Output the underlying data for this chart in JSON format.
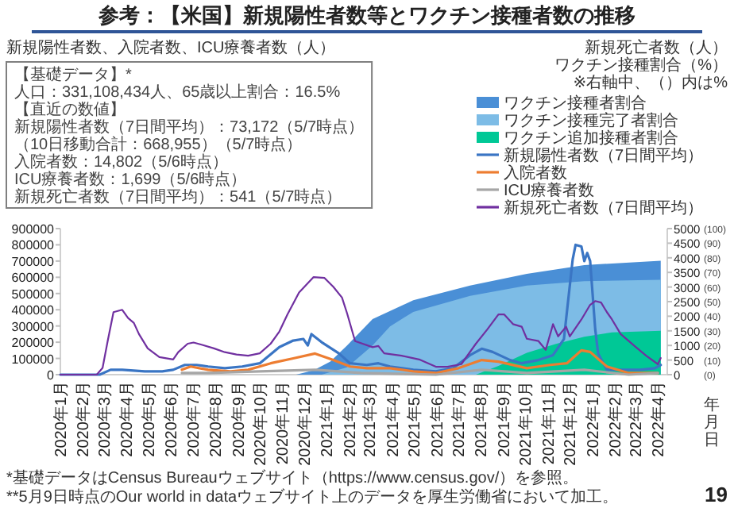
{
  "chart_data": {
    "type": "line",
    "title": "参考：【米国】新規陽性者数等とワクチン接種者数の推移",
    "xlabel": "年月日",
    "annotations": [
      "新規陽性者数、入院者数、ICU療養者数（人）",
      "新規死亡者数（人）",
      "ワクチン接種割合（%）",
      "※右軸中、（）内は%",
      "【基礎データ】*",
      "人口：331,108,434人、65歳以上割合：16.5%",
      "【直近の数値】",
      "新規陽性者数（7日間平均）：73,172（5/7時点）",
      "（10日移動合計：668,955）（5/7時点）",
      "入院者数：14,802（5/6時点）",
      "ICU療養者数：1,699（5/6時点）",
      "新規死亡者数（7日間平均）：541（5/7時点）",
      "*基礎データはCensus Bureauウェブサイト（https://www.census.gov/）を参照。",
      "**5月9日時点のOur world in dataウェブサイト上のデータを厚生労働省において加工。",
      "19"
    ],
    "xlim": [
      "2020-01-01",
      "2022-04-14"
    ],
    "xticks": [
      {
        "value": "2020-01",
        "label": "2020年1月"
      },
      {
        "value": "2020-02",
        "label": "2020年2月"
      },
      {
        "value": "2020-03",
        "label": "2020年3月"
      },
      {
        "value": "2020-04",
        "label": "2020年4月"
      },
      {
        "value": "2020-05",
        "label": "2020年5月"
      },
      {
        "value": "2020-06",
        "label": "2020年6月"
      },
      {
        "value": "2020-07",
        "label": "2020年7月"
      },
      {
        "value": "2020-08",
        "label": "2020年8月"
      },
      {
        "value": "2020-09",
        "label": "2020年9月"
      },
      {
        "value": "2020-10",
        "label": "2020年10月"
      },
      {
        "value": "2020-11",
        "label": "2020年11月"
      },
      {
        "value": "2020-12",
        "label": "2020年12月"
      },
      {
        "value": "2021-01",
        "label": "2021年1月"
      },
      {
        "value": "2021-02",
        "label": "2021年2月"
      },
      {
        "value": "2021-03",
        "label": "2021年3月"
      },
      {
        "value": "2021-04",
        "label": "2021年4月"
      },
      {
        "value": "2021-05",
        "label": "2021年5月"
      },
      {
        "value": "2021-06",
        "label": "2021年6月"
      },
      {
        "value": "2021-07",
        "label": "2021年7月"
      },
      {
        "value": "2021-08",
        "label": "2021年8月"
      },
      {
        "value": "2021-09",
        "label": "2021年9月"
      },
      {
        "value": "2021-10",
        "label": "2021年10月"
      },
      {
        "value": "2021-11",
        "label": "2021年11月"
      },
      {
        "value": "2021-12",
        "label": "2021年12月"
      },
      {
        "value": "2022-01",
        "label": "2022年1月"
      },
      {
        "value": "2022-02",
        "label": "2022年2月"
      },
      {
        "value": "2022-03",
        "label": "2022年3月"
      },
      {
        "value": "2022-04",
        "label": "2022年4月"
      }
    ],
    "ylim": [
      0,
      900000
    ],
    "yticks": [
      0,
      100000,
      200000,
      300000,
      400000,
      500000,
      600000,
      700000,
      800000,
      900000
    ],
    "y2lim": [
      0,
      5000
    ],
    "y2ticks": [
      0,
      500,
      1000,
      1500,
      2000,
      2500,
      3000,
      3500,
      4000,
      4500,
      5000
    ],
    "y3lim": [
      0,
      100
    ],
    "y3ticks": [
      {
        "value": 0,
        "label": "(0)"
      },
      {
        "value": 10,
        "label": "(10)"
      },
      {
        "value": 20,
        "label": "(20)"
      },
      {
        "value": 30,
        "label": "(30)"
      },
      {
        "value": 40,
        "label": "(40)"
      },
      {
        "value": 50,
        "label": "(50)"
      },
      {
        "value": 60,
        "label": "(60)"
      },
      {
        "value": 70,
        "label": "(70)"
      },
      {
        "value": 80,
        "label": "(80)"
      },
      {
        "value": 90,
        "label": "(90)"
      },
      {
        "value": 100,
        "label": "(100)"
      }
    ],
    "legend": "top right",
    "series": [
      {
        "name": "ワクチン接種者割合",
        "type": "area",
        "axis": "y3",
        "color": "#4a8fd6",
        "x": [
          "2020-11-20",
          "2020-12-14",
          "2021-01-06",
          "2021-01-29",
          "2021-03-05",
          "2021-04-30",
          "2021-07-17",
          "2021-10-03",
          "2021-12-21",
          "2022-04-05"
        ],
        "values": [
          0,
          3,
          9,
          20,
          38,
          51,
          61,
          69,
          75,
          78
        ]
      },
      {
        "name": "ワクチン接種完了者割合",
        "type": "area",
        "axis": "y3",
        "color": "#7dbce6",
        "x": [
          "2020-12-25",
          "2021-01-29",
          "2021-03-05",
          "2021-03-29",
          "2021-04-30",
          "2021-07-17",
          "2021-10-03",
          "2021-12-21",
          "2022-04-05"
        ],
        "values": [
          0,
          5,
          20,
          33,
          43,
          54,
          61,
          64,
          65
        ]
      },
      {
        "name": "ワクチン追加接種者割合",
        "type": "area",
        "axis": "y3",
        "color": "#00c896",
        "x": [
          "2021-07-25",
          "2021-08-25",
          "2021-10-03",
          "2021-11-12",
          "2021-12-21",
          "2022-01-28",
          "2022-04-05"
        ],
        "values": [
          0,
          6,
          15,
          21,
          26,
          29,
          30
        ]
      },
      {
        "name": "新規陽性者数（7日間平均）",
        "color": "#3a75c4",
        "x": [
          "2020-01-01",
          "2020-02-24",
          "2020-03-10",
          "2020-03-26",
          "2020-04-26",
          "2020-05-20",
          "2020-06-04",
          "2020-06-20",
          "2020-07-06",
          "2020-07-22",
          "2020-08-14",
          "2020-09-07",
          "2020-10-01",
          "2020-10-28",
          "2020-11-16",
          "2020-11-30",
          "2020-12-06",
          "2020-12-11",
          "2020-12-25",
          "2021-01-18",
          "2021-02-02",
          "2021-02-25",
          "2021-03-13",
          "2021-03-29",
          "2021-04-30",
          "2021-05-31",
          "2021-06-24",
          "2021-07-17",
          "2021-08-02",
          "2021-08-17",
          "2021-09-10",
          "2021-09-26",
          "2021-10-19",
          "2021-11-08",
          "2021-11-23",
          "2021-12-05",
          "2021-12-09",
          "2021-12-17",
          "2021-12-21",
          "2021-12-25",
          "2021-12-29",
          "2022-01-05",
          "2022-01-09",
          "2022-01-21",
          "2022-02-13",
          "2022-03-08",
          "2022-03-28",
          "2022-04-05"
        ],
        "values": [
          0,
          0,
          30000,
          30000,
          20000,
          20000,
          30000,
          60000,
          60000,
          50000,
          40000,
          50000,
          70000,
          170000,
          210000,
          220000,
          180000,
          250000,
          200000,
          130000,
          70000,
          60000,
          70000,
          50000,
          30000,
          20000,
          40000,
          120000,
          160000,
          140000,
          90000,
          70000,
          90000,
          120000,
          220000,
          710000,
          800000,
          790000,
          700000,
          750000,
          700000,
          280000,
          130000,
          30000,
          30000,
          30000,
          40000,
          60000
        ]
      },
      {
        "name": "入院者数",
        "color": "#ed7d31",
        "x": [
          "2020-06-16",
          "2020-06-28",
          "2020-07-22",
          "2020-08-22",
          "2020-09-15",
          "2020-10-16",
          "2020-11-16",
          "2020-12-16",
          "2021-01-10",
          "2021-02-02",
          "2021-02-25",
          "2021-03-29",
          "2021-04-30",
          "2021-05-31",
          "2021-07-01",
          "2021-08-02",
          "2021-08-25",
          "2021-10-03",
          "2021-11-04",
          "2021-11-27",
          "2021-12-17",
          "2021-12-29",
          "2022-01-21",
          "2022-02-20",
          "2022-04-01"
        ],
        "values": [
          30000,
          50000,
          30000,
          20000,
          30000,
          70000,
          100000,
          130000,
          90000,
          50000,
          40000,
          40000,
          20000,
          10000,
          40000,
          90000,
          80000,
          40000,
          60000,
          70000,
          150000,
          140000,
          50000,
          10000,
          10000
        ]
      },
      {
        "name": "ICU療養者数",
        "color": "#a6a6a6",
        "x": [
          "2020-06-16",
          "2020-07-22",
          "2020-10-01",
          "2020-12-16",
          "2021-02-17",
          "2021-05-31",
          "2021-08-02",
          "2021-10-03",
          "2021-12-21",
          "2022-02-20",
          "2022-04-01"
        ],
        "values": [
          10000,
          10000,
          20000,
          30000,
          10000,
          0,
          30000,
          10000,
          30000,
          0,
          10000
        ]
      },
      {
        "name": "新規死亡者数（7日間平均）",
        "axis": "y2",
        "color": "#7030a0",
        "x": [
          "2020-01-01",
          "2020-02-20",
          "2020-02-28",
          "2020-03-06",
          "2020-03-14",
          "2020-03-26",
          "2020-04-03",
          "2020-04-11",
          "2020-04-18",
          "2020-04-30",
          "2020-05-16",
          "2020-06-04",
          "2020-06-11",
          "2020-06-24",
          "2020-07-02",
          "2020-07-14",
          "2020-07-30",
          "2020-08-14",
          "2020-08-30",
          "2020-09-15",
          "2020-10-01",
          "2020-10-16",
          "2020-10-28",
          "2020-11-08",
          "2020-11-24",
          "2020-12-14",
          "2020-12-29",
          "2021-01-10",
          "2021-01-22",
          "2021-01-29",
          "2021-02-09",
          "2021-03-05",
          "2021-03-13",
          "2021-03-21",
          "2021-04-14",
          "2021-05-08",
          "2021-05-31",
          "2021-06-16",
          "2021-07-05",
          "2021-07-25",
          "2021-08-10",
          "2021-08-25",
          "2021-09-02",
          "2021-09-14",
          "2021-09-26",
          "2021-10-03",
          "2021-10-19",
          "2021-10-29",
          "2021-11-08",
          "2021-11-15",
          "2021-11-26",
          "2021-12-01",
          "2021-12-17",
          "2021-12-29",
          "2022-01-05",
          "2022-01-13",
          "2022-01-21",
          "2022-01-28",
          "2022-02-09",
          "2022-02-28",
          "2022-03-16",
          "2022-04-01",
          "2022-04-05"
        ],
        "values": [
          0,
          0,
          230,
          1150,
          2140,
          2220,
          1940,
          1770,
          1390,
          900,
          600,
          520,
          770,
          1060,
          1100,
          1020,
          900,
          770,
          690,
          650,
          730,
          1060,
          1480,
          2060,
          2810,
          3340,
          3310,
          3010,
          2640,
          2100,
          1150,
          940,
          980,
          730,
          650,
          520,
          270,
          270,
          360,
          1060,
          1560,
          2060,
          2060,
          1730,
          1640,
          1230,
          1150,
          850,
          1730,
          1310,
          1640,
          1310,
          1890,
          2390,
          2520,
          2470,
          2140,
          1890,
          1390,
          980,
          650,
          360,
          570
        ]
      }
    ]
  }
}
